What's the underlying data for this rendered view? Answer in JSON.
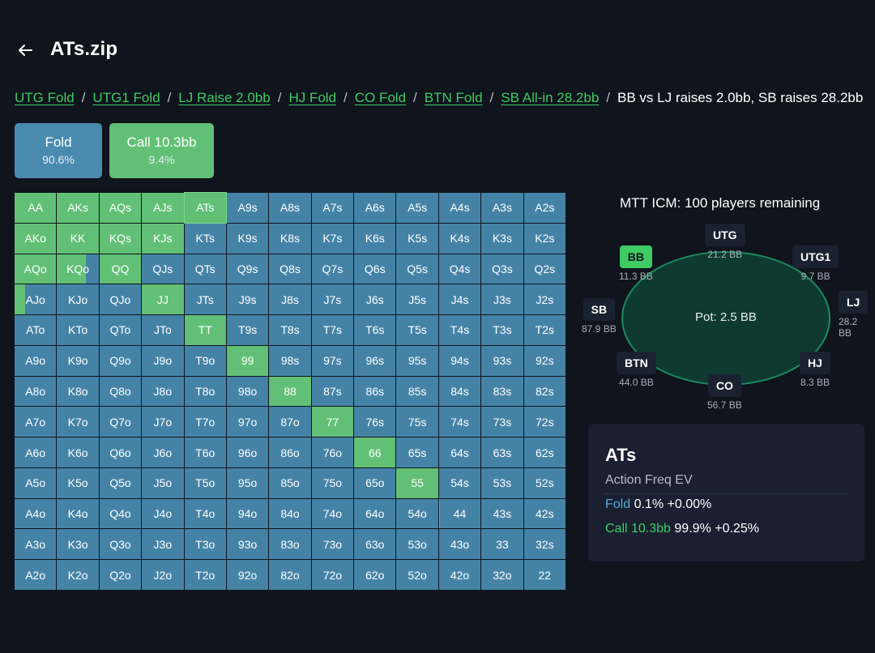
{
  "header": {
    "title": "ATs.zip"
  },
  "breadcrumb": [
    {
      "label": "UTG Fold"
    },
    {
      "label": "UTG1 Fold"
    },
    {
      "label": "LJ Raise 2.0bb"
    },
    {
      "label": "HJ Fold"
    },
    {
      "label": "CO Fold"
    },
    {
      "label": "BTN Fold"
    },
    {
      "label": "SB All-in 28.2bb"
    }
  ],
  "breadcrumb_current": "BB vs LJ raises 2.0bb, SB raises 28.2bb",
  "actions": {
    "fold": {
      "label": "Fold",
      "pct": "90.6%"
    },
    "call": {
      "label": "Call 10.3bb",
      "pct": "9.4%"
    }
  },
  "colors": {
    "fold": "#4583a6",
    "call": "#62c076",
    "accent": "#3fcb63",
    "background": "#0f141d"
  },
  "range": {
    "hands": [
      [
        "AA",
        "AKs",
        "AQs",
        "AJs",
        "ATs",
        "A9s",
        "A8s",
        "A7s",
        "A6s",
        "A5s",
        "A4s",
        "A3s",
        "A2s"
      ],
      [
        "AKo",
        "KK",
        "KQs",
        "KJs",
        "KTs",
        "K9s",
        "K8s",
        "K7s",
        "K6s",
        "K5s",
        "K4s",
        "K3s",
        "K2s"
      ],
      [
        "AQo",
        "KQo",
        "QQ",
        "QJs",
        "QTs",
        "Q9s",
        "Q8s",
        "Q7s",
        "Q6s",
        "Q5s",
        "Q4s",
        "Q3s",
        "Q2s"
      ],
      [
        "AJo",
        "KJo",
        "QJo",
        "JJ",
        "JTs",
        "J9s",
        "J8s",
        "J7s",
        "J6s",
        "J5s",
        "J4s",
        "J3s",
        "J2s"
      ],
      [
        "ATo",
        "KTo",
        "QTo",
        "JTo",
        "TT",
        "T9s",
        "T8s",
        "T7s",
        "T6s",
        "T5s",
        "T4s",
        "T3s",
        "T2s"
      ],
      [
        "A9o",
        "K9o",
        "Q9o",
        "J9o",
        "T9o",
        "99",
        "98s",
        "97s",
        "96s",
        "95s",
        "94s",
        "93s",
        "92s"
      ],
      [
        "A8o",
        "K8o",
        "Q8o",
        "J8o",
        "T8o",
        "98o",
        "88",
        "87s",
        "86s",
        "85s",
        "84s",
        "83s",
        "82s"
      ],
      [
        "A7o",
        "K7o",
        "Q7o",
        "J7o",
        "T7o",
        "97o",
        "87o",
        "77",
        "76s",
        "75s",
        "74s",
        "73s",
        "72s"
      ],
      [
        "A6o",
        "K6o",
        "Q6o",
        "J6o",
        "T6o",
        "96o",
        "86o",
        "76o",
        "66",
        "65s",
        "64s",
        "63s",
        "62s"
      ],
      [
        "A5o",
        "K5o",
        "Q5o",
        "J5o",
        "T5o",
        "95o",
        "85o",
        "75o",
        "65o",
        "55",
        "54s",
        "53s",
        "52s"
      ],
      [
        "A4o",
        "K4o",
        "Q4o",
        "J4o",
        "T4o",
        "94o",
        "84o",
        "74o",
        "64o",
        "54o",
        "44",
        "43s",
        "42s"
      ],
      [
        "A3o",
        "K3o",
        "Q3o",
        "J3o",
        "T3o",
        "93o",
        "83o",
        "73o",
        "63o",
        "53o",
        "43o",
        "33",
        "32s"
      ],
      [
        "A2o",
        "K2o",
        "Q2o",
        "J2o",
        "T2o",
        "92o",
        "82o",
        "72o",
        "62o",
        "52o",
        "42o",
        "32o",
        "22"
      ]
    ],
    "call_freq": [
      [
        1,
        1,
        1,
        1,
        1,
        0,
        0,
        0,
        0,
        0,
        0,
        0,
        0
      ],
      [
        1,
        1,
        1,
        1,
        0,
        0,
        0,
        0,
        0,
        0,
        0,
        0,
        0
      ],
      [
        1,
        0.7,
        1,
        0,
        0,
        0,
        0,
        0,
        0,
        0,
        0,
        0,
        0
      ],
      [
        0.25,
        0,
        0,
        1,
        0,
        0,
        0,
        0,
        0,
        0,
        0,
        0,
        0
      ],
      [
        0,
        0,
        0,
        0,
        1,
        0,
        0,
        0,
        0,
        0,
        0,
        0,
        0
      ],
      [
        0,
        0,
        0,
        0,
        0,
        1,
        0,
        0,
        0,
        0,
        0,
        0,
        0
      ],
      [
        0,
        0,
        0,
        0,
        0,
        0,
        1,
        0,
        0,
        0,
        0,
        0,
        0
      ],
      [
        0,
        0,
        0,
        0,
        0,
        0,
        0,
        1,
        0,
        0,
        0,
        0,
        0
      ],
      [
        0,
        0,
        0,
        0,
        0,
        0,
        0,
        0,
        1,
        0,
        0,
        0,
        0
      ],
      [
        0,
        0,
        0,
        0,
        0,
        0,
        0,
        0,
        0,
        1,
        0,
        0,
        0
      ],
      [
        0,
        0,
        0,
        0,
        0,
        0,
        0,
        0,
        0,
        0,
        0.03,
        0,
        0
      ],
      [
        0,
        0,
        0,
        0,
        0,
        0,
        0,
        0,
        0,
        0,
        0,
        0,
        0
      ],
      [
        0,
        0,
        0,
        0,
        0,
        0,
        0,
        0,
        0,
        0,
        0,
        0,
        0
      ]
    ]
  },
  "table": {
    "info": "MTT ICM: 100 players remaining",
    "pot": "Pot: 2.5 BB",
    "seats": {
      "utg": {
        "name": "UTG",
        "stack": "21.2 BB"
      },
      "utg1": {
        "name": "UTG1",
        "stack": "9.7 BB"
      },
      "lj": {
        "name": "LJ",
        "stack": "28.2 BB"
      },
      "hj": {
        "name": "HJ",
        "stack": "8.3 BB"
      },
      "co": {
        "name": "CO",
        "stack": "56.7 BB"
      },
      "btn": {
        "name": "BTN",
        "stack": "44.0 BB"
      },
      "sb": {
        "name": "SB",
        "stack": "87.9 BB"
      },
      "bb": {
        "name": "BB",
        "stack": "11.3 BB"
      }
    }
  },
  "hand_info": {
    "hand": "ATs",
    "columns": {
      "action": "Action",
      "freq": "Freq",
      "ev": "EV"
    },
    "rows": {
      "fold": {
        "action": "Fold",
        "freq": "0.1%",
        "ev": "+0.00%"
      },
      "call": {
        "action": "Call 10.3bb",
        "freq": "99.9%",
        "ev": "+0.25%"
      }
    }
  }
}
